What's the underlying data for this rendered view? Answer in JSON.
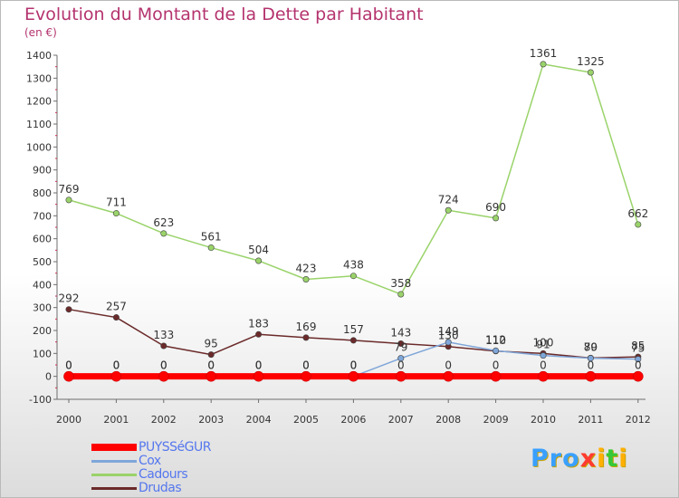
{
  "title": "Evolution du Montant de la Dette par Habitant",
  "subtitle": "(en €)",
  "logo": {
    "text": "Proxiti",
    "letters": [
      {
        "ch": "P",
        "color": "#3aa0ff"
      },
      {
        "ch": "r",
        "color": "#3aa0ff"
      },
      {
        "ch": "o",
        "color": "#3aa0ff"
      },
      {
        "ch": "x",
        "color": "#ff3b30"
      },
      {
        "ch": "i",
        "color": "#ffb000"
      },
      {
        "ch": "t",
        "color": "#37c837"
      },
      {
        "ch": "i",
        "color": "#ffb000"
      }
    ]
  },
  "chart_data": {
    "type": "line",
    "title": "Evolution du Montant de la Dette par Habitant",
    "ylabel": "(en €)",
    "xlabel": "",
    "x": [
      "2000",
      "2001",
      "2002",
      "2003",
      "2004",
      "2005",
      "2006",
      "2007",
      "2008",
      "2009",
      "2010",
      "2011",
      "2012"
    ],
    "yticks": [
      "-100",
      "0",
      "100",
      "200",
      "300",
      "400",
      "500",
      "600",
      "700",
      "800",
      "900",
      "1000",
      "1100",
      "1200",
      "1300",
      "1400"
    ],
    "ylim": [
      -100,
      1400
    ],
    "grid": false,
    "legend_position": "bottom-left",
    "series": [
      {
        "name": "PUYSSéGUR",
        "color": "#ff0000",
        "values": [
          0,
          0,
          0,
          0,
          0,
          0,
          0,
          0,
          0,
          0,
          0,
          0,
          0
        ],
        "labels": [
          "0",
          "0",
          "0",
          "0",
          "0",
          "0",
          "0",
          "0",
          "0",
          "0",
          "0",
          "0",
          "0"
        ]
      },
      {
        "name": "Cox",
        "color": "#7fa6d9",
        "values": [
          0,
          0,
          0,
          0,
          0,
          0,
          0,
          79,
          149,
          112,
          91,
          79,
          75
        ],
        "labels": [
          "0",
          "0",
          "0",
          "0",
          "0",
          "0",
          "0",
          "79",
          "149",
          "112",
          "91",
          "79",
          "75"
        ]
      },
      {
        "name": "Cadours",
        "color": "#9ad36a",
        "values": [
          769,
          711,
          623,
          561,
          504,
          423,
          438,
          358,
          724,
          690,
          1361,
          1325,
          662
        ],
        "labels": [
          "769",
          "711",
          "623",
          "561",
          "504",
          "423",
          "438",
          "358",
          "724",
          "690",
          "1361",
          "1325",
          "662"
        ]
      },
      {
        "name": "Drudas",
        "color": "#6b2a2a",
        "values": [
          292,
          257,
          133,
          95,
          183,
          169,
          157,
          143,
          130,
          110,
          100,
          80,
          85
        ],
        "labels": [
          "292",
          "257",
          "133",
          "95",
          "183",
          "169",
          "157",
          "143",
          "130",
          "110",
          "100",
          "80",
          "85"
        ]
      }
    ]
  }
}
